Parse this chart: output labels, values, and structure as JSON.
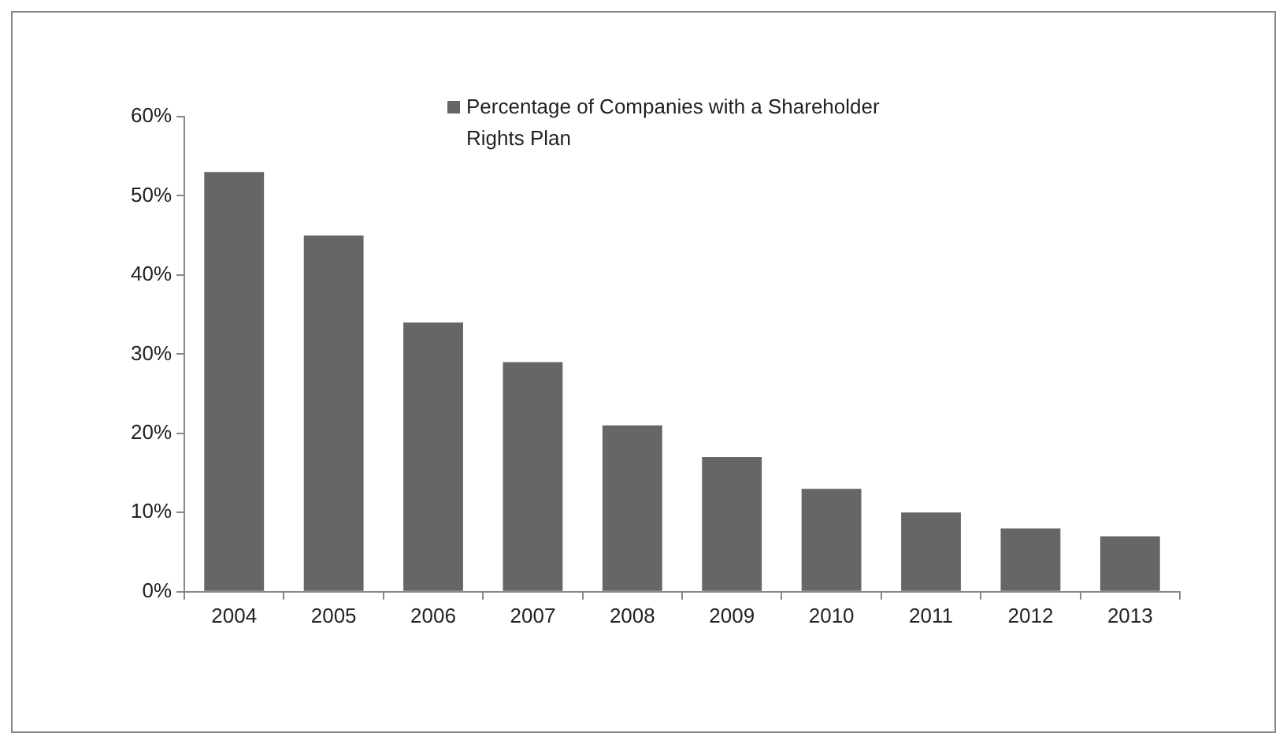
{
  "chart_data": {
    "type": "bar",
    "categories": [
      "2004",
      "2005",
      "2006",
      "2007",
      "2008",
      "2009",
      "2010",
      "2011",
      "2012",
      "2013"
    ],
    "series": [
      {
        "name": "Percentage of Companies with a Shareholder Rights Plan",
        "color": "#666666",
        "values": [
          53,
          45,
          34,
          29,
          21,
          17,
          13,
          10,
          8,
          7
        ]
      }
    ],
    "ylim": [
      0,
      60
    ],
    "yticks": [
      {
        "value": 0,
        "label": "0%"
      },
      {
        "value": 10,
        "label": "10%"
      },
      {
        "value": 20,
        "label": "20%"
      },
      {
        "value": 30,
        "label": "30%"
      },
      {
        "value": 40,
        "label": "40%"
      },
      {
        "value": 50,
        "label": "50%"
      },
      {
        "value": 60,
        "label": "60%"
      }
    ],
    "grid": false,
    "legend": "top"
  }
}
